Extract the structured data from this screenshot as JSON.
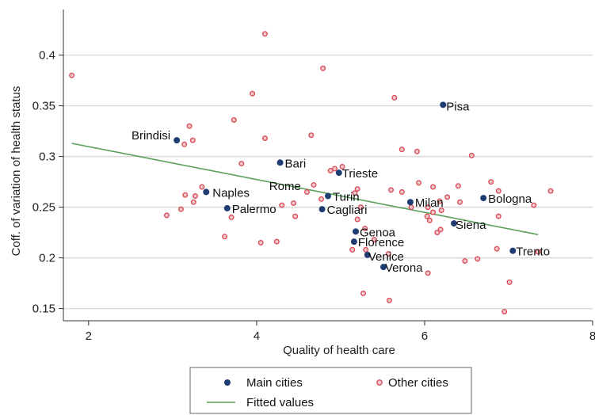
{
  "chart_data": {
    "type": "scatter",
    "xlabel": "Quality of health care",
    "ylabel": "Coff. of variation of health status",
    "xlim": [
      1.7,
      8.0
    ],
    "ylim": [
      0.138,
      0.445
    ],
    "x_ticks": [
      2,
      4,
      6,
      8
    ],
    "y_ticks": [
      0.15,
      0.2,
      0.25,
      0.3,
      0.35,
      0.4
    ],
    "x_tick_labels": [
      "2",
      "4",
      "6",
      "8"
    ],
    "y_tick_labels": [
      "0.15",
      "0.2",
      "0.25",
      "0.3",
      "0.35",
      "0.4"
    ],
    "grid": "horizontal",
    "legend_placement": "bottom",
    "colors": {
      "main": "#1f3d73",
      "other": "#d9505a",
      "fitted": "#5aa05a",
      "grid": "#d9d9d9"
    },
    "series": [
      {
        "name": "Main cities",
        "points": [
          {
            "x": 6.22,
            "y": 0.351,
            "label": "Pisa"
          },
          {
            "x": 3.05,
            "y": 0.316,
            "label": "Brindisi"
          },
          {
            "x": 4.28,
            "y": 0.294,
            "label": "Bari"
          },
          {
            "x": 4.98,
            "y": 0.284,
            "label": "Trieste"
          },
          {
            "x": 3.4,
            "y": 0.265,
            "label": "Naples"
          },
          {
            "x": 4.85,
            "y": 0.261,
            "label": "Turin"
          },
          {
            "x": 5.83,
            "y": 0.255,
            "label": "Milan"
          },
          {
            "x": 6.7,
            "y": 0.259,
            "label": "Bologna"
          },
          {
            "x": 3.65,
            "y": 0.249,
            "label": "Palermo"
          },
          {
            "x": 4.78,
            "y": 0.248,
            "label": "Cagliari"
          },
          {
            "x": 6.35,
            "y": 0.234,
            "label": "Siena"
          },
          {
            "x": 5.18,
            "y": 0.226,
            "label": "Genoa"
          },
          {
            "x": 5.16,
            "y": 0.216,
            "label": "Florence"
          },
          {
            "x": 7.05,
            "y": 0.207,
            "label": "Trento"
          },
          {
            "x": 5.32,
            "y": 0.203,
            "label": "Venice"
          },
          {
            "x": 5.51,
            "y": 0.191,
            "label": "Verona"
          }
        ]
      },
      {
        "name": "Other cities",
        "points": [
          {
            "x": 1.8,
            "y": 0.38
          },
          {
            "x": 4.1,
            "y": 0.421
          },
          {
            "x": 4.79,
            "y": 0.387
          },
          {
            "x": 3.95,
            "y": 0.362
          },
          {
            "x": 5.64,
            "y": 0.358
          },
          {
            "x": 3.73,
            "y": 0.336
          },
          {
            "x": 3.2,
            "y": 0.33
          },
          {
            "x": 4.65,
            "y": 0.321
          },
          {
            "x": 4.1,
            "y": 0.318
          },
          {
            "x": 3.24,
            "y": 0.316
          },
          {
            "x": 3.14,
            "y": 0.312
          },
          {
            "x": 5.73,
            "y": 0.307
          },
          {
            "x": 5.91,
            "y": 0.305
          },
          {
            "x": 6.56,
            "y": 0.301
          },
          {
            "x": 3.82,
            "y": 0.293
          },
          {
            "x": 5.02,
            "y": 0.29
          },
          {
            "x": 4.93,
            "y": 0.288
          },
          {
            "x": 4.88,
            "y": 0.286
          },
          {
            "x": 6.79,
            "y": 0.275
          },
          {
            "x": 5.93,
            "y": 0.274
          },
          {
            "x": 4.68,
            "y": 0.272
          },
          {
            "x": 6.4,
            "y": 0.271
          },
          {
            "x": 6.1,
            "y": 0.27
          },
          {
            "x": 5.2,
            "y": 0.268
          },
          {
            "x": 3.35,
            "y": 0.27
          },
          {
            "x": 5.6,
            "y": 0.267
          },
          {
            "x": 7.5,
            "y": 0.266
          },
          {
            "x": 6.88,
            "y": 0.266
          },
          {
            "x": 5.73,
            "y": 0.265
          },
          {
            "x": 5.17,
            "y": 0.264
          },
          {
            "x": 4.6,
            "y": 0.265
          },
          {
            "x": 3.15,
            "y": 0.262
          },
          {
            "x": 3.27,
            "y": 0.261
          },
          {
            "x": 6.27,
            "y": 0.26
          },
          {
            "x": 4.77,
            "y": 0.258
          },
          {
            "x": 6.18,
            "y": 0.256
          },
          {
            "x": 3.25,
            "y": 0.255
          },
          {
            "x": 6.42,
            "y": 0.255
          },
          {
            "x": 4.44,
            "y": 0.254
          },
          {
            "x": 4.3,
            "y": 0.252
          },
          {
            "x": 7.3,
            "y": 0.252
          },
          {
            "x": 6.04,
            "y": 0.25
          },
          {
            "x": 5.24,
            "y": 0.25
          },
          {
            "x": 5.84,
            "y": 0.25
          },
          {
            "x": 3.1,
            "y": 0.248
          },
          {
            "x": 6.2,
            "y": 0.247
          },
          {
            "x": 6.1,
            "y": 0.245
          },
          {
            "x": 4.46,
            "y": 0.241
          },
          {
            "x": 6.03,
            "y": 0.241
          },
          {
            "x": 3.7,
            "y": 0.24
          },
          {
            "x": 6.88,
            "y": 0.241
          },
          {
            "x": 2.93,
            "y": 0.242
          },
          {
            "x": 5.2,
            "y": 0.238
          },
          {
            "x": 6.06,
            "y": 0.237
          },
          {
            "x": 6.19,
            "y": 0.228
          },
          {
            "x": 5.29,
            "y": 0.229
          },
          {
            "x": 6.15,
            "y": 0.225
          },
          {
            "x": 3.62,
            "y": 0.221
          },
          {
            "x": 5.4,
            "y": 0.218
          },
          {
            "x": 4.24,
            "y": 0.216
          },
          {
            "x": 4.05,
            "y": 0.215
          },
          {
            "x": 6.86,
            "y": 0.209
          },
          {
            "x": 5.3,
            "y": 0.208
          },
          {
            "x": 5.14,
            "y": 0.208
          },
          {
            "x": 7.35,
            "y": 0.206
          },
          {
            "x": 5.57,
            "y": 0.204
          },
          {
            "x": 6.63,
            "y": 0.199
          },
          {
            "x": 6.48,
            "y": 0.197
          },
          {
            "x": 6.04,
            "y": 0.185
          },
          {
            "x": 7.01,
            "y": 0.176
          },
          {
            "x": 5.27,
            "y": 0.165
          },
          {
            "x": 5.58,
            "y": 0.158
          },
          {
            "x": 6.95,
            "y": 0.147
          }
        ]
      },
      {
        "name": "Fitted values",
        "line": [
          {
            "x": 1.8,
            "y": 0.313
          },
          {
            "x": 7.35,
            "y": 0.223
          }
        ]
      }
    ]
  },
  "legend": {
    "main_label": "Main cities",
    "other_label": "Other cities",
    "fitted_label": "Fitted values"
  }
}
